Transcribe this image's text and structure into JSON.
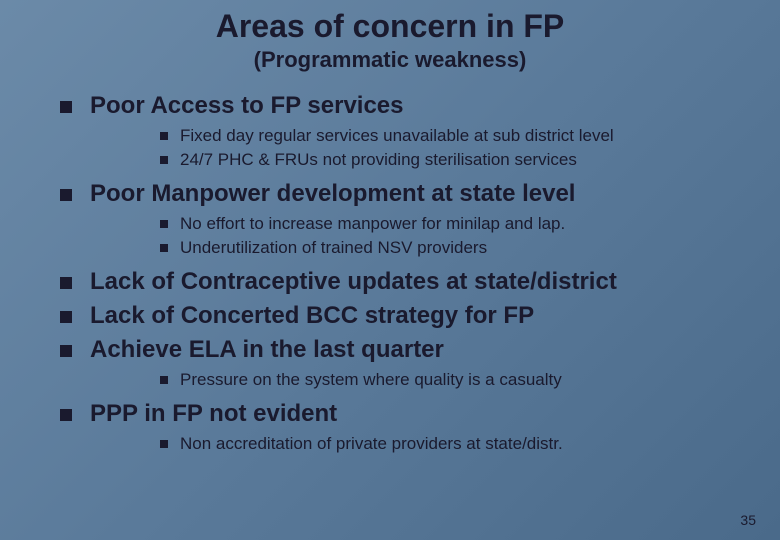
{
  "title": "Areas of concern in FP",
  "subtitle": "(Programmatic weakness)",
  "items": [
    {
      "level": 1,
      "text": "Poor Access to FP services"
    },
    {
      "level": 2,
      "text": "Fixed day regular services unavailable at sub district level"
    },
    {
      "level": 2,
      "text": "24/7 PHC & FRUs not providing sterilisation services"
    },
    {
      "level": 1,
      "text": "Poor Manpower development at state level"
    },
    {
      "level": 2,
      "text": "No effort to increase manpower for minilap and lap."
    },
    {
      "level": 2,
      "text": "Underutilization of trained NSV providers"
    },
    {
      "level": 1,
      "text": "Lack of Contraceptive updates at state/district"
    },
    {
      "level": 1,
      "text": "Lack of Concerted BCC strategy for FP"
    },
    {
      "level": 1,
      "text": "Achieve ELA in the last quarter"
    },
    {
      "level": 2,
      "text": "Pressure on the system where quality is a casualty"
    },
    {
      "level": 1,
      "text": "PPP in FP not evident"
    },
    {
      "level": 2,
      "text": "Non accreditation of private providers at state/distr."
    }
  ],
  "pageNumber": "35",
  "colors": {
    "bg_start": "#6b8aa8",
    "bg_end": "#4a6a8a",
    "text": "#1a1a2e",
    "bullet": "#1a1a2e"
  }
}
